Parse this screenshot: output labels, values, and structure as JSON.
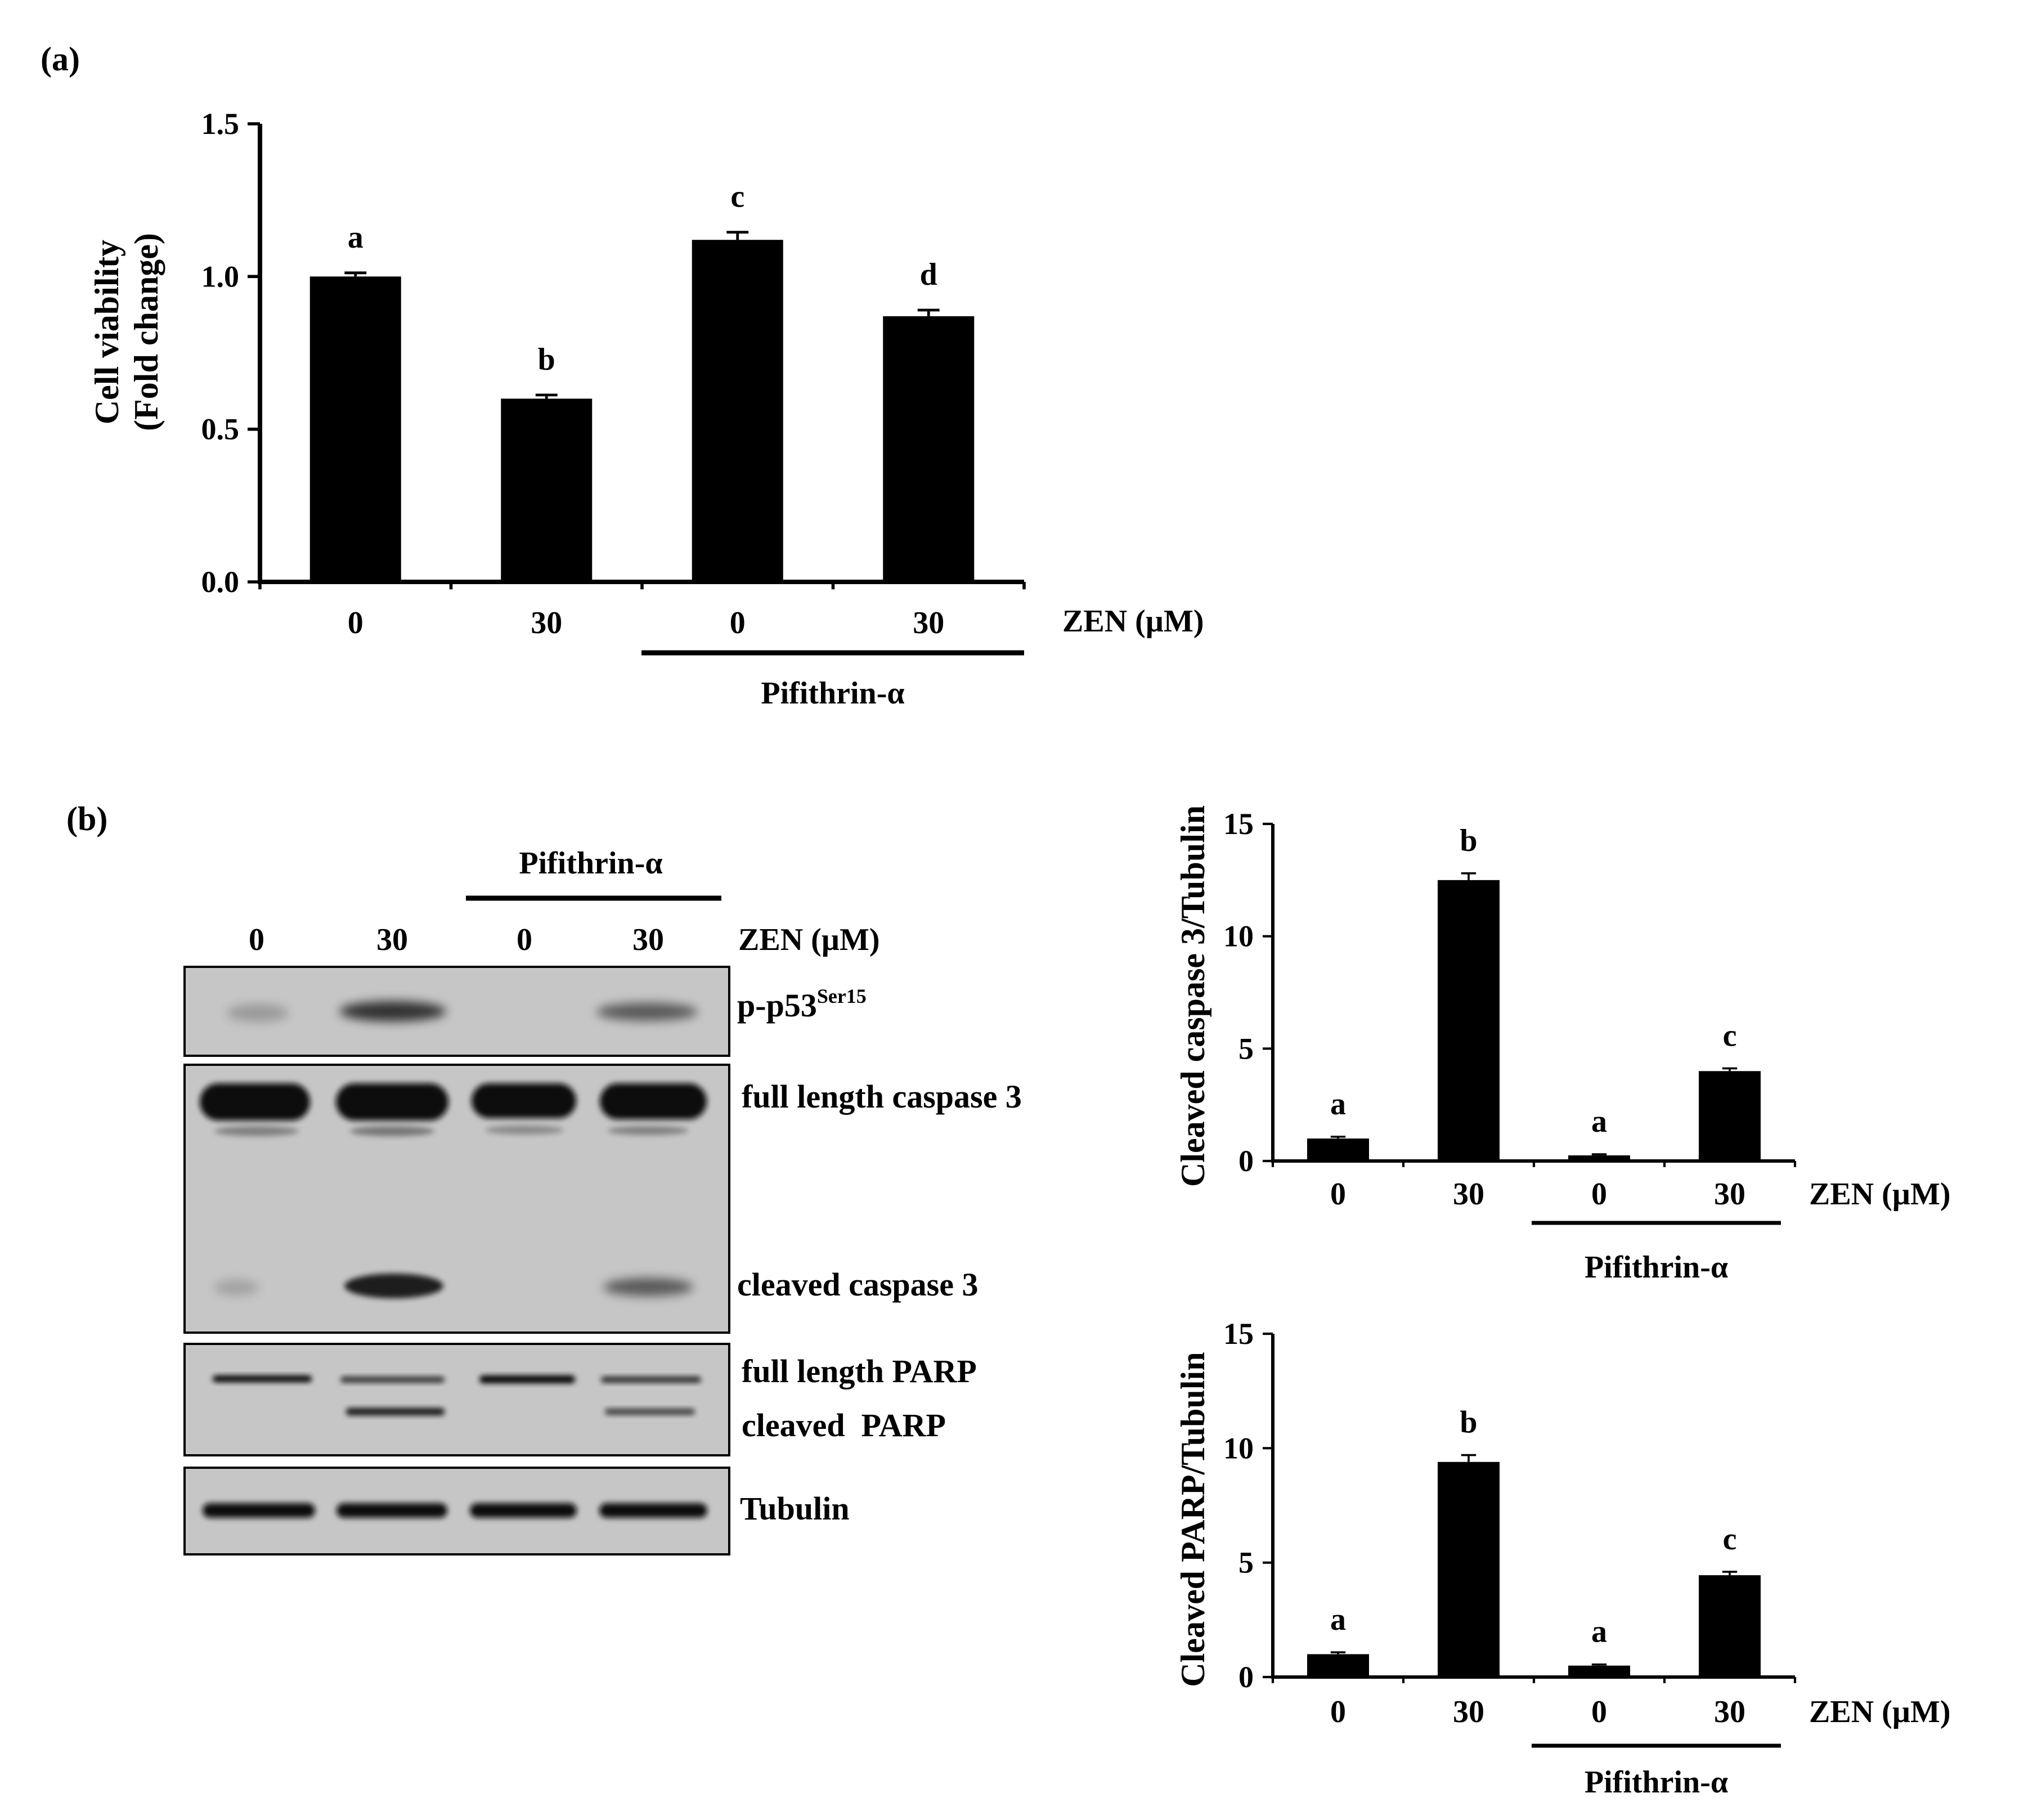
{
  "panels": {
    "a": "(a)",
    "b": "(b)"
  },
  "treatment": {
    "zen_label": "ZEN (µM)",
    "pifithrin_label": "Pifithrin-α"
  },
  "chart_data": [
    {
      "id": "cell-viability",
      "type": "bar",
      "categories": [
        "0",
        "30",
        "0",
        "30"
      ],
      "values": [
        1.0,
        0.6,
        1.12,
        0.87
      ],
      "errors": [
        0.012,
        0.012,
        0.025,
        0.02
      ],
      "significance": [
        "a",
        "b",
        "c",
        "d"
      ],
      "ylabel": [
        "Cell viability",
        "(Fold change)"
      ],
      "ylim": [
        0,
        1.5
      ],
      "yticks": [
        0,
        0.5,
        1.0,
        1.5
      ],
      "ytick_labels": [
        "0.0",
        "0.5",
        "1.0",
        "1.5"
      ],
      "xlabel": "ZEN (µM)",
      "group_label": "Pifithrin-α",
      "grid": false
    },
    {
      "id": "cleaved-caspase3",
      "type": "bar",
      "categories": [
        "0",
        "30",
        "0",
        "30"
      ],
      "values": [
        1.0,
        12.5,
        0.25,
        4.0
      ],
      "errors": [
        0.08,
        0.3,
        0.05,
        0.12
      ],
      "significance": [
        "a",
        "b",
        "a",
        "c"
      ],
      "ylabel": "Cleaved caspase 3/Tubulin",
      "ylim": [
        0,
        15
      ],
      "yticks": [
        0,
        5,
        10,
        15
      ],
      "ytick_labels": [
        "0",
        "5",
        "10",
        "15"
      ],
      "xlabel": "ZEN (µM)",
      "group_label": "Pifithrin-α",
      "grid": false
    },
    {
      "id": "cleaved-parp",
      "type": "bar",
      "categories": [
        "0",
        "30",
        "0",
        "30"
      ],
      "values": [
        1.0,
        9.4,
        0.5,
        4.45
      ],
      "errors": [
        0.08,
        0.3,
        0.05,
        0.15
      ],
      "significance": [
        "a",
        "b",
        "a",
        "c"
      ],
      "ylabel": "Cleaved PARP/Tubulin",
      "ylim": [
        0,
        15
      ],
      "yticks": [
        0,
        5,
        10,
        15
      ],
      "ytick_labels": [
        "0",
        "5",
        "10",
        "15"
      ],
      "xlabel": "ZEN (µM)",
      "group_label": "Pifithrin-α",
      "grid": false
    }
  ],
  "western_blot": {
    "lanes": [
      "0",
      "30",
      "0",
      "30"
    ],
    "zen_label": "ZEN (µM)",
    "group_label": "Pifithrin-α",
    "bands": {
      "p53_main": "p-p53",
      "p53_sup": "Ser15",
      "full_caspase3": "full length caspase 3",
      "cleaved_caspase3": "cleaved caspase 3",
      "full_parp": "full length PARP",
      "cleaved_parp": "cleaved  PARP",
      "tubulin": "Tubulin"
    }
  }
}
